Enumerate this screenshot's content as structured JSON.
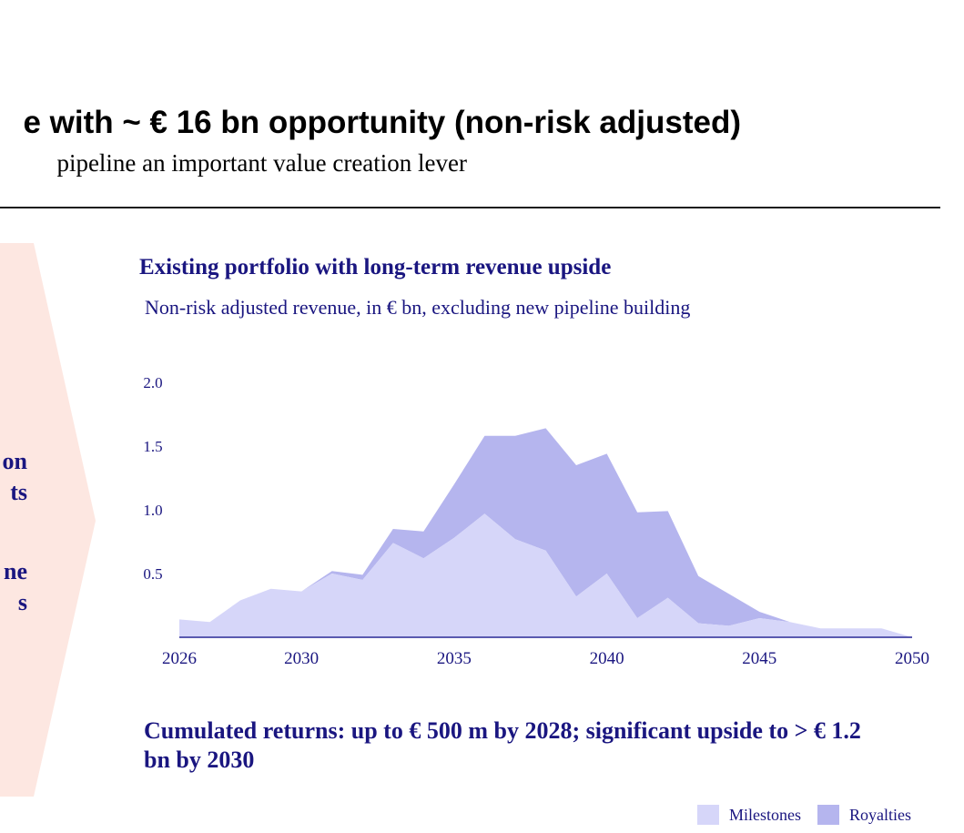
{
  "slide": {
    "title": "e with ~ € 16 bn opportunity (non-risk adjusted)",
    "subtitle": "pipeline an important value creation lever"
  },
  "left_panel": {
    "lines": [
      "on",
      "ts",
      "",
      "ne",
      "s"
    ]
  },
  "colors": {
    "accent": "#1a1680",
    "milestones": "#d6d6f9",
    "royalties": "#b5b5ee",
    "left_panel": "#fde7e1"
  },
  "footnote": "Cumulated returns: up to € 500 m by 2028; significant upside to > € 1.2 bn by 2030",
  "chart_data": {
    "type": "area",
    "title": "Existing portfolio with long-term revenue upside",
    "subtitle": "Non-risk adjusted revenue, in € bn, excluding new pipeline building",
    "xlabel": "",
    "ylabel": "",
    "stacked": true,
    "x": [
      2026,
      2027,
      2028,
      2029,
      2030,
      2031,
      2032,
      2033,
      2034,
      2035,
      2036,
      2037,
      2038,
      2039,
      2040,
      2041,
      2042,
      2043,
      2044,
      2045,
      2046,
      2047,
      2048,
      2049,
      2050
    ],
    "xlim": [
      2026,
      2050
    ],
    "ylim": [
      0,
      2.0
    ],
    "x_ticks": [
      "2026",
      "2030",
      "2035",
      "2040",
      "2045",
      "2050"
    ],
    "y_ticks": [
      "0.5",
      "1.0",
      "1.5",
      "2.0"
    ],
    "grid": false,
    "legend": "bottom-right",
    "series": [
      {
        "name": "Milestones",
        "values": [
          0.14,
          0.12,
          0.29,
          0.38,
          0.36,
          0.5,
          0.45,
          0.74,
          0.62,
          0.78,
          0.97,
          0.77,
          0.68,
          0.32,
          0.5,
          0.15,
          0.31,
          0.11,
          0.09,
          0.15,
          0.12,
          0.07,
          0.07,
          0.07,
          0.0
        ]
      },
      {
        "name": "Royalties",
        "values": [
          0.0,
          0.0,
          0.0,
          0.0,
          0.0,
          0.02,
          0.04,
          0.11,
          0.21,
          0.42,
          0.61,
          0.81,
          0.96,
          1.03,
          0.94,
          0.83,
          0.68,
          0.37,
          0.25,
          0.05,
          0.0,
          0.0,
          0.0,
          0.0,
          0.0
        ]
      }
    ]
  }
}
